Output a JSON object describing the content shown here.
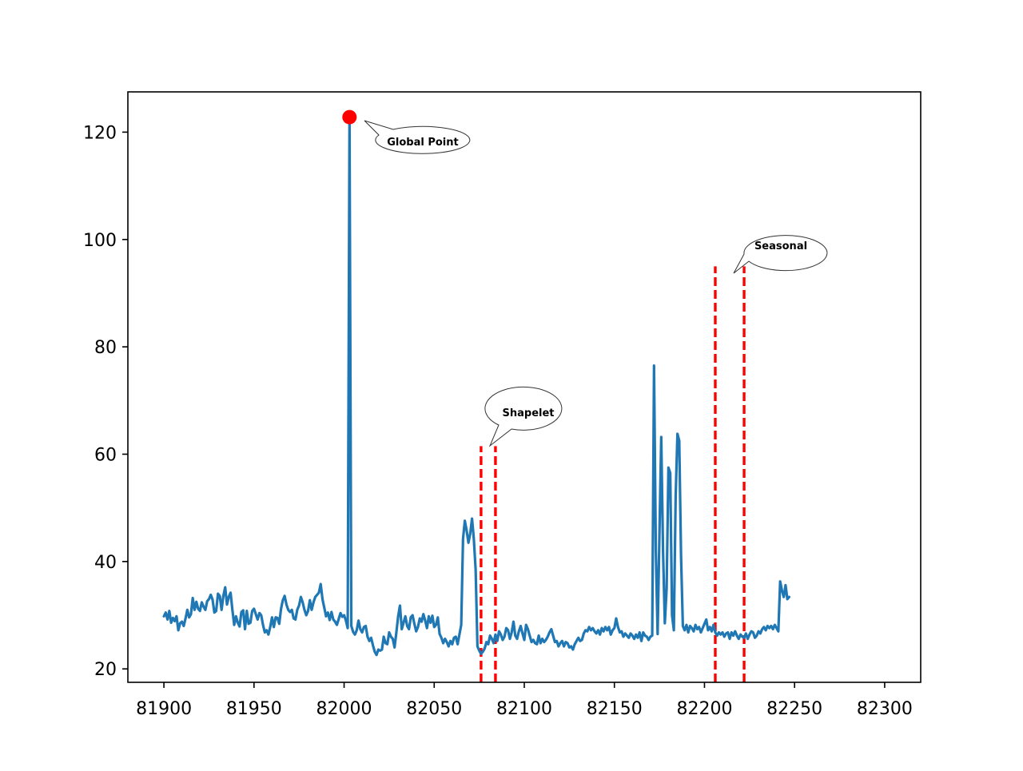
{
  "chart_data": {
    "type": "line",
    "title": "",
    "xlabel": "",
    "ylabel": "",
    "xlim": [
      81880,
      82320
    ],
    "ylim": [
      17.5,
      127.5
    ],
    "xticks": [
      81900,
      81950,
      82000,
      82050,
      82100,
      82150,
      82200,
      82250,
      82300
    ],
    "xtick_labels": [
      "81900",
      "81950",
      "82000",
      "82050",
      "82100",
      "82150",
      "82200",
      "82250",
      "82300"
    ],
    "yticks": [
      20,
      40,
      60,
      80,
      100,
      120
    ],
    "ytick_labels": [
      "20",
      "40",
      "60",
      "80",
      "100",
      "120"
    ],
    "grid": false,
    "legend": "none",
    "colors": {
      "series": "#1f77b4",
      "anomaly": "#ff0000",
      "frame": "#000000"
    },
    "series": [
      {
        "x_start": 81900,
        "x_step": 1,
        "values": [
          29.8,
          30.5,
          29.2,
          30.8,
          28.6,
          29.5,
          28.9,
          29.8,
          27.2,
          28.5,
          28.8,
          28.0,
          29.4,
          31.0,
          29.6,
          30.2,
          33.2,
          31.0,
          32.5,
          31.2,
          30.8,
          32.4,
          31.6,
          31.0,
          32.6,
          33.0,
          33.8,
          32.9,
          30.5,
          30.8,
          34.0,
          33.6,
          31.0,
          33.6,
          35.2,
          32.0,
          33.4,
          34.2,
          31.0,
          28.2,
          29.8,
          28.6,
          27.9,
          30.6,
          30.9,
          27.4,
          30.8,
          28.4,
          28.6,
          30.8,
          31.2,
          30.2,
          29.2,
          30.4,
          30.0,
          28.2,
          26.8,
          27.2,
          26.4,
          27.8,
          29.6,
          27.8,
          29.6,
          29.5,
          28.4,
          31.2,
          32.8,
          33.6,
          32.0,
          31.0,
          30.6,
          31.0,
          29.4,
          29.2,
          31.0,
          31.8,
          33.4,
          32.4,
          31.0,
          30.0,
          30.8,
          32.8,
          31.0,
          32.4,
          33.4,
          33.8,
          34.2,
          35.8,
          33.0,
          31.4,
          29.8,
          30.5,
          29.1,
          30.6,
          29.2,
          28.8,
          28.2,
          29.3,
          30.4,
          29.7,
          30.0,
          29.0,
          27.6,
          30.6,
          28.0,
          26.9,
          26.4,
          27.2,
          29.0,
          27.4,
          26.8,
          27.8,
          28.0,
          26.0,
          25.2,
          25.8,
          24.4,
          23.2,
          22.6,
          23.6,
          23.4,
          23.6,
          26.0,
          24.8,
          24.6,
          26.8,
          26.0,
          25.6,
          24.0,
          26.8,
          29.8,
          31.8,
          27.4,
          28.6,
          29.8,
          28.0,
          27.4,
          29.6,
          30.0,
          28.4,
          27.0,
          27.8,
          29.4,
          28.8,
          30.2,
          29.0,
          27.6,
          29.8,
          28.6,
          29.9,
          27.8,
          28.2,
          29.6,
          26.5,
          25.8,
          24.8,
          25.6,
          25.0,
          24.2,
          25.2,
          24.6,
          25.8,
          26.0,
          24.6,
          26.4,
          28.2,
          44.2,
          47.6,
          45.8,
          43.5,
          45.2,
          48.0,
          44.2,
          38.5,
          24.2,
          23.4,
          22.8,
          23.2,
          23.8,
          25.0,
          24.6,
          26.2,
          25.6,
          24.8,
          26.4,
          25.2,
          27.0,
          26.4,
          25.4,
          26.0,
          27.6,
          27.2,
          25.6,
          26.8,
          28.8,
          26.2,
          25.6,
          27.0,
          28.0,
          26.6,
          25.4,
          28.2,
          27.4,
          26.2,
          25.0,
          25.4,
          24.8,
          24.6,
          26.2,
          24.8,
          25.6,
          25.0,
          25.4,
          26.0,
          26.8,
          27.4,
          26.2,
          25.0,
          25.2,
          24.2,
          24.8,
          25.2,
          24.2,
          25.0,
          24.8,
          24.0,
          24.2,
          23.6,
          24.6,
          25.2,
          25.8,
          25.2,
          25.4,
          26.6,
          27.2,
          27.0,
          27.8,
          27.2,
          27.6,
          27.0,
          26.6,
          27.2,
          26.4,
          27.6,
          27.0,
          27.8,
          27.2,
          27.8,
          26.4,
          27.2,
          27.6,
          29.4,
          27.8,
          26.8,
          27.0,
          26.0,
          26.6,
          26.2,
          25.8,
          26.6,
          26.2,
          25.6,
          26.4,
          25.8,
          26.8,
          25.2,
          26.8,
          26.2,
          26.0,
          25.4,
          26.0,
          26.2,
          76.5,
          42.0,
          26.5,
          45.0,
          63.2,
          42.0,
          28.5,
          35.0,
          57.5,
          56.5,
          30.0,
          27.2,
          52.0,
          63.8,
          62.5,
          41.0,
          28.0,
          27.2,
          28.2,
          26.8,
          28.0,
          27.6,
          27.0,
          28.2,
          27.4,
          27.8,
          26.8,
          27.6,
          28.4,
          29.2,
          27.2,
          27.8,
          27.0,
          28.2,
          26.8,
          26.2,
          26.8,
          26.4,
          26.8,
          26.0,
          26.6,
          26.8,
          25.6,
          26.8,
          26.2,
          27.0,
          26.2,
          25.6,
          26.4,
          26.0,
          25.8,
          26.6,
          25.6,
          26.4,
          27.0,
          26.8,
          25.8,
          26.2,
          27.0,
          26.6,
          27.4,
          27.8,
          27.2,
          28.0,
          27.6,
          28.0,
          27.4,
          28.2,
          27.6,
          27.0,
          36.3,
          34.6,
          33.4,
          35.6,
          33.0,
          33.4
        ],
        "anomaly_overrides": [
          [
            82003,
            122.8
          ]
        ]
      }
    ],
    "markers": [
      {
        "x": 82003,
        "y": 122.8
      }
    ],
    "vlines": [
      {
        "x": 82076,
        "ymin": 17.5,
        "ymax": 61.5
      },
      {
        "x": 82084,
        "ymin": 17.5,
        "ymax": 61.5
      },
      {
        "x": 82206,
        "ymin": 17.5,
        "ymax": 95.0
      },
      {
        "x": 82222,
        "ymin": 17.5,
        "ymax": 95.0
      }
    ],
    "annotations": [
      {
        "text": "Global Point"
      },
      {
        "text": "Shapelet"
      },
      {
        "text": "Seasonal"
      }
    ]
  }
}
